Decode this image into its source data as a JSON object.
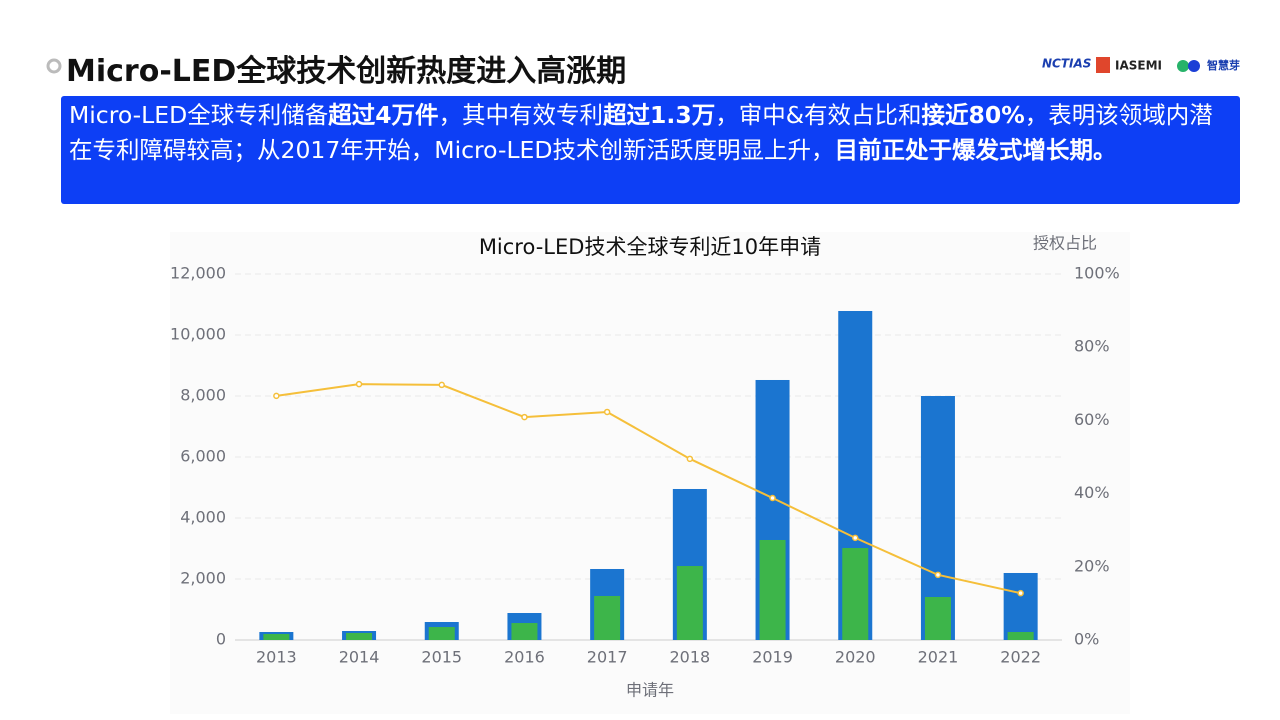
{
  "slide_title": "Micro-LED全球技术创新热度进入高涨期",
  "logos": [
    "NCTIAS",
    "IASEMI",
    "智慧芽"
  ],
  "banner": {
    "segments": [
      {
        "text": "Micro-LED全球专利储备",
        "bold": false
      },
      {
        "text": "超过4万件",
        "bold": true
      },
      {
        "text": "，其中有效专利",
        "bold": false
      },
      {
        "text": "超过1.3万",
        "bold": true
      },
      {
        "text": "，审中&有效占比和",
        "bold": false
      },
      {
        "text": "接近80%",
        "bold": true
      },
      {
        "text": "，表明该领域内潜在专利障碍较高；从2017年开始，Micro-LED技术创新活跃度明显上升，",
        "bold": false
      },
      {
        "text": "目前正处于爆发式增长期。",
        "bold": true
      }
    ]
  },
  "chart_data": {
    "type": "bar",
    "title": "Micro-LED技术全球专利近10年申请",
    "x_label": "申请年",
    "y2_label": "授权占比",
    "categories": [
      "2013",
      "2014",
      "2015",
      "2016",
      "2017",
      "2018",
      "2019",
      "2020",
      "2021",
      "2022"
    ],
    "series": [
      {
        "color": "#1b75d0",
        "values": [
          262,
          295,
          590,
          885,
          2328,
          4951,
          8525,
          10787,
          8000,
          2197
        ]
      },
      {
        "color": "#3db54a",
        "values": [
          197,
          230,
          426,
          557,
          1443,
          2426,
          3279,
          3016,
          1410,
          262
        ]
      },
      {
        "type": "line",
        "axis": "y2",
        "color": "#f5bf3a",
        "values": [
          66.7,
          69.9,
          69.7,
          60.9,
          62.3,
          49.5,
          38.8,
          27.9,
          17.8,
          12.8
        ]
      }
    ],
    "ylim": [
      0,
      12000
    ],
    "yticks": [
      0,
      {
        "value": 2000,
        "label": "2,000"
      },
      {
        "value": 4000,
        "label": "4,000"
      },
      {
        "value": 6000,
        "label": "6,000"
      },
      {
        "value": 8000,
        "label": "8,000"
      },
      {
        "value": 10000,
        "label": "10,000"
      },
      {
        "value": 12000,
        "label": "12,000"
      }
    ],
    "y2lim": [
      0,
      100
    ],
    "y2ticks": [
      {
        "value": 0,
        "label": "0%"
      },
      {
        "value": 20,
        "label": "20%"
      },
      {
        "value": 40,
        "label": "40%"
      },
      {
        "value": 60,
        "label": "60%"
      },
      {
        "value": 80,
        "label": "80%"
      },
      {
        "value": 100,
        "label": "100%"
      }
    ],
    "grid": true
  }
}
